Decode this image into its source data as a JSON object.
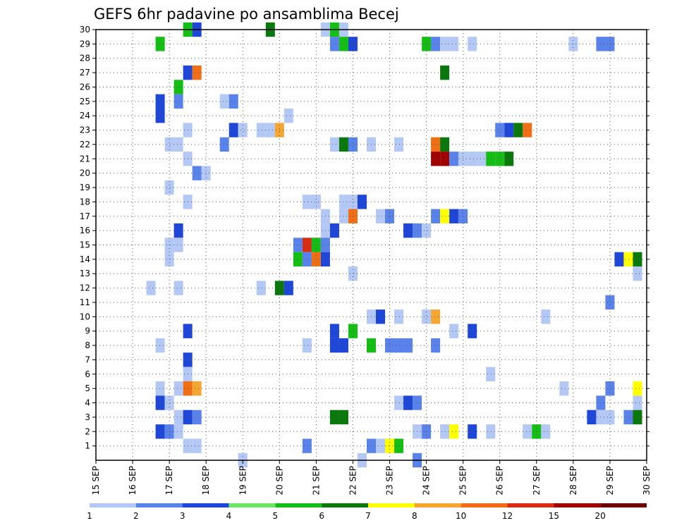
{
  "chart_data": {
    "type": "heatmap",
    "title": "GEFS 6hr padavine po ansamblima Becej",
    "xlabel": "",
    "ylabel": "",
    "grid": true,
    "x_ticks": [
      "15 SEP",
      "16 SEP",
      "17 SEP",
      "18 SEP",
      "19 SEP",
      "20 SEP",
      "21 SEP",
      "22 SEP",
      "23 SEP",
      "24 SEP",
      "25 SEP",
      "26 SEP",
      "27 SEP",
      "28 SEP",
      "29 SEP",
      "30 SEP"
    ],
    "xlim": [
      "15 SEP 00",
      "30 SEP 00"
    ],
    "y_ticks": [
      1,
      2,
      3,
      4,
      5,
      6,
      7,
      8,
      9,
      10,
      11,
      12,
      13,
      14,
      15,
      16,
      17,
      18,
      19,
      20,
      21,
      22,
      23,
      24,
      25,
      26,
      27,
      28,
      29,
      30
    ],
    "ylim": [
      0,
      30
    ],
    "legend": {
      "position": "bottom",
      "labels": [
        "1",
        "2",
        "3",
        "4",
        "5",
        "6",
        "7",
        "8",
        "10",
        "12",
        "15",
        "20"
      ],
      "colors": [
        "#b4c8f5",
        "#5a82eb",
        "#1e46d7",
        "#6ee664",
        "#14be14",
        "#0a780a",
        "#ffff00",
        "#f5a532",
        "#f06e14",
        "#d72d14",
        "#a00000",
        "#6e0000"
      ]
    },
    "cells": [
      {
        "date": "16 SEP 12",
        "y": 12,
        "v": 1
      },
      {
        "date": "16 SEP 18",
        "y": 8,
        "v": 1
      },
      {
        "date": "16 SEP 18",
        "y": 5,
        "v": 1
      },
      {
        "date": "16 SEP 18",
        "y": 4,
        "v": 3
      },
      {
        "date": "16 SEP 18",
        "y": 2,
        "v": 3
      },
      {
        "date": "16 SEP 18",
        "y": 29,
        "v": 5
      },
      {
        "date": "16 SEP 18",
        "y": 25,
        "v": 3
      },
      {
        "date": "16 SEP 18",
        "y": 24,
        "v": 3
      },
      {
        "date": "17 SEP 00",
        "y": 22,
        "v": 1
      },
      {
        "date": "17 SEP 00",
        "y": 19,
        "v": 1
      },
      {
        "date": "17 SEP 00",
        "y": 15,
        "v": 1
      },
      {
        "date": "17 SEP 00",
        "y": 14,
        "v": 1
      },
      {
        "date": "17 SEP 00",
        "y": 2,
        "v": 2
      },
      {
        "date": "17 SEP 00",
        "y": 4,
        "v": 1
      },
      {
        "date": "17 SEP 06",
        "y": 26,
        "v": 5
      },
      {
        "date": "17 SEP 06",
        "y": 25,
        "v": 2
      },
      {
        "date": "17 SEP 06",
        "y": 22,
        "v": 1
      },
      {
        "date": "17 SEP 06",
        "y": 16,
        "v": 3
      },
      {
        "date": "17 SEP 06",
        "y": 15,
        "v": 1
      },
      {
        "date": "17 SEP 06",
        "y": 12,
        "v": 1
      },
      {
        "date": "17 SEP 06",
        "y": 5,
        "v": 1
      },
      {
        "date": "17 SEP 06",
        "y": 3,
        "v": 1
      },
      {
        "date": "17 SEP 06",
        "y": 2,
        "v": 1
      },
      {
        "date": "17 SEP 12",
        "y": 30,
        "v": 5
      },
      {
        "date": "17 SEP 12",
        "y": 27,
        "v": 3
      },
      {
        "date": "17 SEP 12",
        "y": 23,
        "v": 1
      },
      {
        "date": "17 SEP 12",
        "y": 21,
        "v": 1
      },
      {
        "date": "17 SEP 12",
        "y": 18,
        "v": 1
      },
      {
        "date": "17 SEP 12",
        "y": 9,
        "v": 3
      },
      {
        "date": "17 SEP 12",
        "y": 7,
        "v": 3
      },
      {
        "date": "17 SEP 12",
        "y": 6,
        "v": 1
      },
      {
        "date": "17 SEP 12",
        "y": 5,
        "v": 10
      },
      {
        "date": "17 SEP 12",
        "y": 3,
        "v": 3
      },
      {
        "date": "17 SEP 12",
        "y": 1,
        "v": 1
      },
      {
        "date": "17 SEP 18",
        "y": 30,
        "v": 3
      },
      {
        "date": "17 SEP 18",
        "y": 27,
        "v": 10
      },
      {
        "date": "17 SEP 18",
        "y": 20,
        "v": 2
      },
      {
        "date": "17 SEP 18",
        "y": 5,
        "v": 8
      },
      {
        "date": "17 SEP 18",
        "y": 3,
        "v": 2
      },
      {
        "date": "17 SEP 18",
        "y": 1,
        "v": 1
      },
      {
        "date": "18 SEP 00",
        "y": 20,
        "v": 1
      },
      {
        "date": "18 SEP 12",
        "y": 22,
        "v": 2
      },
      {
        "date": "18 SEP 12",
        "y": 25,
        "v": 1
      },
      {
        "date": "18 SEP 18",
        "y": 25,
        "v": 2
      },
      {
        "date": "18 SEP 18",
        "y": 23,
        "v": 3
      },
      {
        "date": "19 SEP 00",
        "y": 23,
        "v": 1
      },
      {
        "date": "19 SEP 00",
        "y": 0,
        "v": 1
      },
      {
        "date": "19 SEP 12",
        "y": 23,
        "v": 1
      },
      {
        "date": "19 SEP 12",
        "y": 12,
        "v": 1
      },
      {
        "date": "19 SEP 18",
        "y": 30,
        "v": 6
      },
      {
        "date": "19 SEP 18",
        "y": 23,
        "v": 1
      },
      {
        "date": "20 SEP 00",
        "y": 23,
        "v": 8
      },
      {
        "date": "20 SEP 00",
        "y": 12,
        "v": 6
      },
      {
        "date": "20 SEP 06",
        "y": 24,
        "v": 1
      },
      {
        "date": "20 SEP 06",
        "y": 12,
        "v": 3
      },
      {
        "date": "20 SEP 12",
        "y": 15,
        "v": 2
      },
      {
        "date": "20 SEP 12",
        "y": 14,
        "v": 5
      },
      {
        "date": "20 SEP 18",
        "y": 18,
        "v": 1
      },
      {
        "date": "20 SEP 18",
        "y": 15,
        "v": 12
      },
      {
        "date": "20 SEP 18",
        "y": 14,
        "v": 2
      },
      {
        "date": "20 SEP 18",
        "y": 8,
        "v": 1
      },
      {
        "date": "20 SEP 18",
        "y": 1,
        "v": 2
      },
      {
        "date": "21 SEP 00",
        "y": 18,
        "v": 1
      },
      {
        "date": "21 SEP 00",
        "y": 15,
        "v": 5
      },
      {
        "date": "21 SEP 00",
        "y": 14,
        "v": 10
      },
      {
        "date": "21 SEP 06",
        "y": 30,
        "v": 1
      },
      {
        "date": "21 SEP 06",
        "y": 17,
        "v": 1
      },
      {
        "date": "21 SEP 06",
        "y": 16,
        "v": 1
      },
      {
        "date": "21 SEP 06",
        "y": 15,
        "v": 2
      },
      {
        "date": "21 SEP 06",
        "y": 14,
        "v": 3
      },
      {
        "date": "21 SEP 12",
        "y": 30,
        "v": 5
      },
      {
        "date": "21 SEP 12",
        "y": 29,
        "v": 2
      },
      {
        "date": "21 SEP 12",
        "y": 22,
        "v": 1
      },
      {
        "date": "21 SEP 12",
        "y": 16,
        "v": 3
      },
      {
        "date": "21 SEP 12",
        "y": 9,
        "v": 3
      },
      {
        "date": "21 SEP 12",
        "y": 8,
        "v": 3
      },
      {
        "date": "21 SEP 12",
        "y": 3,
        "v": 6
      },
      {
        "date": "21 SEP 18",
        "y": 30,
        "v": 1
      },
      {
        "date": "21 SEP 18",
        "y": 29,
        "v": 5
      },
      {
        "date": "21 SEP 18",
        "y": 22,
        "v": 6
      },
      {
        "date": "21 SEP 18",
        "y": 18,
        "v": 1
      },
      {
        "date": "21 SEP 18",
        "y": 17,
        "v": 1
      },
      {
        "date": "21 SEP 18",
        "y": 8,
        "v": 3
      },
      {
        "date": "21 SEP 18",
        "y": 3,
        "v": 6
      },
      {
        "date": "22 SEP 00",
        "y": 29,
        "v": 3
      },
      {
        "date": "22 SEP 00",
        "y": 22,
        "v": 2
      },
      {
        "date": "22 SEP 00",
        "y": 18,
        "v": 1
      },
      {
        "date": "22 SEP 00",
        "y": 17,
        "v": 10
      },
      {
        "date": "22 SEP 00",
        "y": 13,
        "v": 1
      },
      {
        "date": "22 SEP 00",
        "y": 9,
        "v": 5
      },
      {
        "date": "22 SEP 06",
        "y": 18,
        "v": 3
      },
      {
        "date": "22 SEP 06",
        "y": 0,
        "v": 1
      },
      {
        "date": "22 SEP 12",
        "y": 22,
        "v": 1
      },
      {
        "date": "22 SEP 12",
        "y": 10,
        "v": 1
      },
      {
        "date": "22 SEP 12",
        "y": 8,
        "v": 5
      },
      {
        "date": "22 SEP 12",
        "y": 1,
        "v": 2
      },
      {
        "date": "22 SEP 18",
        "y": 17,
        "v": 1
      },
      {
        "date": "22 SEP 18",
        "y": 10,
        "v": 3
      },
      {
        "date": "22 SEP 18",
        "y": 1,
        "v": 1
      },
      {
        "date": "23 SEP 00",
        "y": 17,
        "v": 2
      },
      {
        "date": "23 SEP 00",
        "y": 8,
        "v": 2
      },
      {
        "date": "23 SEP 00",
        "y": 1,
        "v": 7
      },
      {
        "date": "23 SEP 06",
        "y": 22,
        "v": 1
      },
      {
        "date": "23 SEP 06",
        "y": 10,
        "v": 1
      },
      {
        "date": "23 SEP 06",
        "y": 8,
        "v": 2
      },
      {
        "date": "23 SEP 06",
        "y": 4,
        "v": 1
      },
      {
        "date": "23 SEP 06",
        "y": 1,
        "v": 5
      },
      {
        "date": "23 SEP 12",
        "y": 16,
        "v": 3
      },
      {
        "date": "23 SEP 12",
        "y": 8,
        "v": 2
      },
      {
        "date": "23 SEP 12",
        "y": 4,
        "v": 3
      },
      {
        "date": "23 SEP 18",
        "y": 16,
        "v": 2
      },
      {
        "date": "23 SEP 18",
        "y": 4,
        "v": 2
      },
      {
        "date": "23 SEP 18",
        "y": 2,
        "v": 1
      },
      {
        "date": "23 SEP 18",
        "y": 0,
        "v": 2
      },
      {
        "date": "24 SEP 00",
        "y": 29,
        "v": 5
      },
      {
        "date": "24 SEP 00",
        "y": 16,
        "v": 1
      },
      {
        "date": "24 SEP 00",
        "y": 10,
        "v": 1
      },
      {
        "date": "24 SEP 00",
        "y": 2,
        "v": 2
      },
      {
        "date": "24 SEP 06",
        "y": 29,
        "v": 2
      },
      {
        "date": "24 SEP 06",
        "y": 10,
        "v": 8
      },
      {
        "date": "24 SEP 06",
        "y": 8,
        "v": 2
      },
      {
        "date": "24 SEP 06",
        "y": 22,
        "v": 10
      },
      {
        "date": "24 SEP 06",
        "y": 21,
        "v": 15
      },
      {
        "date": "24 SEP 06",
        "y": 17,
        "v": 2
      },
      {
        "date": "24 SEP 12",
        "y": 29,
        "v": 1
      },
      {
        "date": "24 SEP 12",
        "y": 27,
        "v": 6
      },
      {
        "date": "24 SEP 12",
        "y": 22,
        "v": 6
      },
      {
        "date": "24 SEP 12",
        "y": 21,
        "v": 15
      },
      {
        "date": "24 SEP 12",
        "y": 17,
        "v": 7
      },
      {
        "date": "24 SEP 12",
        "y": 2,
        "v": 1
      },
      {
        "date": "24 SEP 18",
        "y": 29,
        "v": 1
      },
      {
        "date": "24 SEP 18",
        "y": 21,
        "v": 2
      },
      {
        "date": "24 SEP 18",
        "y": 17,
        "v": 3
      },
      {
        "date": "24 SEP 18",
        "y": 9,
        "v": 1
      },
      {
        "date": "24 SEP 18",
        "y": 2,
        "v": 7
      },
      {
        "date": "25 SEP 00",
        "y": 21,
        "v": 1
      },
      {
        "date": "25 SEP 00",
        "y": 17,
        "v": 2
      },
      {
        "date": "25 SEP 06",
        "y": 29,
        "v": 1
      },
      {
        "date": "25 SEP 06",
        "y": 21,
        "v": 1
      },
      {
        "date": "25 SEP 06",
        "y": 9,
        "v": 3
      },
      {
        "date": "25 SEP 06",
        "y": 2,
        "v": 3
      },
      {
        "date": "25 SEP 12",
        "y": 21,
        "v": 1
      },
      {
        "date": "25 SEP 18",
        "y": 21,
        "v": 5
      },
      {
        "date": "25 SEP 18",
        "y": 6,
        "v": 1
      },
      {
        "date": "25 SEP 18",
        "y": 2,
        "v": 1
      },
      {
        "date": "26 SEP 00",
        "y": 23,
        "v": 2
      },
      {
        "date": "26 SEP 00",
        "y": 21,
        "v": 5
      },
      {
        "date": "26 SEP 06",
        "y": 23,
        "v": 3
      },
      {
        "date": "26 SEP 06",
        "y": 21,
        "v": 6
      },
      {
        "date": "26 SEP 12",
        "y": 23,
        "v": 6
      },
      {
        "date": "26 SEP 18",
        "y": 23,
        "v": 10
      },
      {
        "date": "26 SEP 18",
        "y": 2,
        "v": 1
      },
      {
        "date": "27 SEP 00",
        "y": 2,
        "v": 5
      },
      {
        "date": "27 SEP 06",
        "y": 10,
        "v": 1
      },
      {
        "date": "27 SEP 06",
        "y": 2,
        "v": 1
      },
      {
        "date": "27 SEP 18",
        "y": 5,
        "v": 1
      },
      {
        "date": "28 SEP 00",
        "y": 29,
        "v": 1
      },
      {
        "date": "28 SEP 12",
        "y": 3,
        "v": 3
      },
      {
        "date": "28 SEP 18",
        "y": 4,
        "v": 2
      },
      {
        "date": "28 SEP 18",
        "y": 3,
        "v": 1
      },
      {
        "date": "28 SEP 18",
        "y": 29,
        "v": 2
      },
      {
        "date": "29 SEP 00",
        "y": 29,
        "v": 2
      },
      {
        "date": "29 SEP 00",
        "y": 11,
        "v": 2
      },
      {
        "date": "29 SEP 00",
        "y": 5,
        "v": 2
      },
      {
        "date": "29 SEP 00",
        "y": 3,
        "v": 1
      },
      {
        "date": "29 SEP 06",
        "y": 14,
        "v": 3
      },
      {
        "date": "29 SEP 12",
        "y": 14,
        "v": 7
      },
      {
        "date": "29 SEP 12",
        "y": 3,
        "v": 2
      },
      {
        "date": "29 SEP 18",
        "y": 14,
        "v": 6
      },
      {
        "date": "29 SEP 18",
        "y": 13,
        "v": 1
      },
      {
        "date": "29 SEP 18",
        "y": 5,
        "v": 7
      },
      {
        "date": "29 SEP 18",
        "y": 4,
        "v": 1
      },
      {
        "date": "29 SEP 18",
        "y": 3,
        "v": 6
      }
    ]
  }
}
